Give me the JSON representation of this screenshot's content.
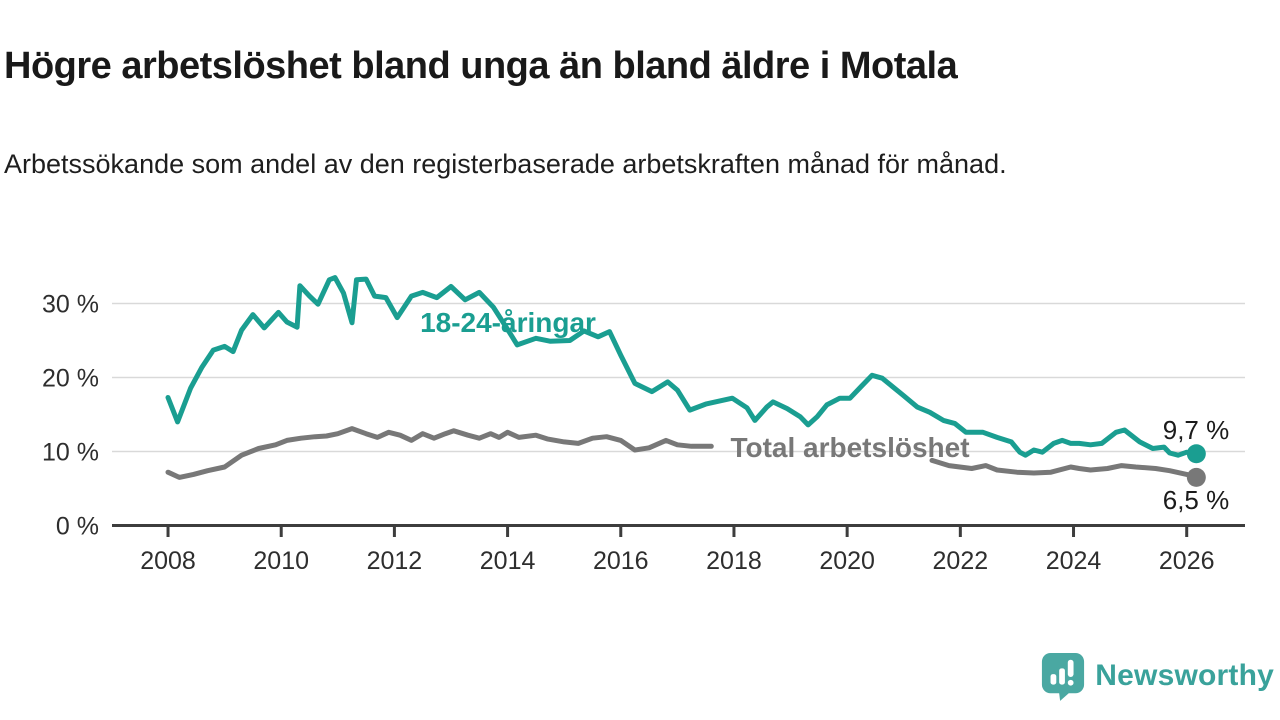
{
  "page": {
    "title": "Högre arbetslöshet bland unga än bland äldre i Motala",
    "subtitle": "Arbetssökande som andel av den registerbaserade arbetskraften månad för månad.",
    "background_color": "#ffffff"
  },
  "footer": {
    "brand": "Newsworthy",
    "brand_color": "#3aa29b",
    "logo_icon": "speech-bubble-bar-chart-exclamation",
    "logo_color": "#4aa8a2"
  },
  "chart_data": {
    "type": "line",
    "title": "Högre arbetslöshet bland unga än bland äldre i Motala",
    "subtitle": "Arbetssökande som andel av den registerbaserade arbetskraften månad för månad.",
    "xlabel": "",
    "ylabel": "",
    "unit": "%",
    "grid": "horizontal",
    "legend_position": "inline-labels",
    "xlim": [
      2007.01,
      2027.03
    ],
    "ylim": [
      0,
      34.5
    ],
    "x_ticks": [
      2008,
      2010,
      2012,
      2014,
      2016,
      2018,
      2020,
      2022,
      2024,
      2026
    ],
    "x_tick_labels": [
      "2008",
      "2010",
      "2012",
      "2014",
      "2016",
      "2018",
      "2020",
      "2022",
      "2024",
      "2026"
    ],
    "y_ticks": [
      0,
      10,
      20,
      30
    ],
    "y_tick_labels": [
      "0 %",
      "10 %",
      "20 %",
      "30 %"
    ],
    "axis_color": "#3d3d3d",
    "grid_color": "#d9d9d9",
    "series": [
      {
        "name": "18-24-åringar",
        "color": "#1a9e91",
        "end_label": "9,7 %",
        "end_value": 9.7,
        "end_dot": true,
        "segments": [
          {
            "x": [
              2008.0,
              2008.17,
              2008.4,
              2008.6,
              2008.8,
              2009.0,
              2009.15,
              2009.3,
              2009.5,
              2009.7,
              2009.95,
              2010.1,
              2010.28,
              2010.33,
              2010.5,
              2010.65,
              2010.85,
              2010.95,
              2011.1,
              2011.25,
              2011.33,
              2011.5,
              2011.65,
              2011.85,
              2012.05,
              2012.3,
              2012.5,
              2012.75,
              2013.0,
              2013.25,
              2013.5,
              2013.75,
              2014.0,
              2014.17,
              2014.5,
              2014.75,
              2015.1,
              2015.35,
              2015.6,
              2015.8,
              2016.0,
              2016.25,
              2016.55,
              2016.83,
              2017.0,
              2017.22,
              2017.5,
              2017.97,
              2018.23,
              2018.37,
              2018.58,
              2018.69,
              2018.94,
              2019.17,
              2019.31,
              2019.47,
              2019.64,
              2019.87,
              2020.05,
              2020.25,
              2020.44,
              2020.62,
              2020.99,
              2021.24,
              2021.46,
              2021.7,
              2021.9,
              2022.1,
              2022.4,
              2022.65,
              2022.9,
              2023.05,
              2023.15,
              2023.3,
              2023.45,
              2023.65,
              2023.8,
              2023.95,
              2024.1,
              2024.3,
              2024.5,
              2024.75,
              2024.9,
              2025.17,
              2025.4,
              2025.6,
              2025.7,
              2025.85,
              2026.0,
              2026.17
            ],
            "y": [
              17.3,
              14.0,
              18.6,
              21.4,
              23.7,
              24.2,
              23.5,
              26.4,
              28.5,
              26.7,
              28.8,
              27.5,
              26.8,
              32.4,
              31.0,
              29.9,
              33.2,
              33.5,
              31.4,
              27.4,
              33.2,
              33.3,
              31.0,
              30.8,
              28.1,
              31.0,
              31.5,
              30.8,
              32.3,
              30.5,
              31.5,
              29.5,
              26.5,
              24.4,
              25.3,
              24.9,
              25.0,
              26.3,
              25.5,
              26.2,
              23.0,
              19.2,
              18.1,
              19.4,
              18.3,
              15.6,
              16.4,
              17.2,
              15.9,
              14.2,
              16.0,
              16.7,
              15.8,
              14.7,
              13.6,
              14.7,
              16.3,
              17.2,
              17.2,
              18.8,
              20.3,
              19.9,
              17.6,
              16.0,
              15.3,
              14.2,
              13.8,
              12.6,
              12.6,
              11.9,
              11.3,
              9.9,
              9.5,
              10.2,
              9.9,
              11.1,
              11.5,
              11.1,
              11.1,
              10.9,
              11.1,
              12.6,
              12.9,
              11.3,
              10.4,
              10.6,
              9.8,
              9.5,
              9.9,
              9.7
            ]
          }
        ]
      },
      {
        "name": "Total arbetslöshet",
        "color": "#787878",
        "end_label": "6,5 %",
        "end_value": 6.5,
        "end_dot": true,
        "segments": [
          {
            "x": [
              2008.0,
              2008.2,
              2008.45,
              2008.7,
              2009.0,
              2009.3,
              2009.6,
              2009.9,
              2010.1,
              2010.35,
              2010.6,
              2010.8,
              2011.0,
              2011.25,
              2011.5,
              2011.7,
              2011.9,
              2012.1,
              2012.3,
              2012.5,
              2012.7,
              2012.9,
              2013.05,
              2013.3,
              2013.5,
              2013.7,
              2013.85,
              2014.0,
              2014.2,
              2014.5,
              2014.7,
              2015.0,
              2015.25,
              2015.5,
              2015.75,
              2016.0,
              2016.25,
              2016.5,
              2016.8,
              2017.0,
              2017.25,
              2017.6
            ],
            "y": [
              7.2,
              6.5,
              6.9,
              7.4,
              7.9,
              9.5,
              10.4,
              10.9,
              11.5,
              11.8,
              12.0,
              12.1,
              12.4,
              13.1,
              12.4,
              11.9,
              12.6,
              12.2,
              11.5,
              12.4,
              11.8,
              12.4,
              12.8,
              12.2,
              11.8,
              12.4,
              11.9,
              12.6,
              11.9,
              12.2,
              11.7,
              11.3,
              11.1,
              11.8,
              12.0,
              11.5,
              10.2,
              10.5,
              11.5,
              10.9,
              10.7,
              10.7
            ]
          },
          {
            "x": [
              2021.5,
              2021.8,
              2022.2,
              2022.45,
              2022.65,
              2023.0,
              2023.3,
              2023.6,
              2023.95,
              2024.1,
              2024.3,
              2024.6,
              2024.85,
              2025.1,
              2025.45,
              2025.7,
              2026.0,
              2026.17
            ],
            "y": [
              8.8,
              8.1,
              7.7,
              8.1,
              7.5,
              7.2,
              7.1,
              7.2,
              7.9,
              7.7,
              7.5,
              7.7,
              8.1,
              7.9,
              7.7,
              7.4,
              6.9,
              6.5
            ]
          }
        ]
      }
    ]
  }
}
